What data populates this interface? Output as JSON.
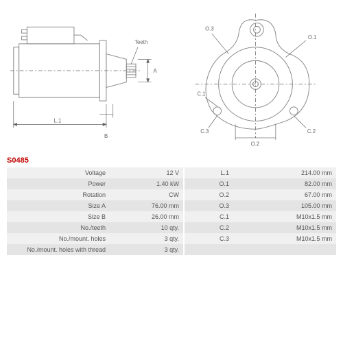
{
  "part_number": "S0485",
  "diagram_left": {
    "labels": {
      "L1": "L.1",
      "B": "B",
      "A": "A",
      "Teeth": "Teeth"
    },
    "stroke_color": "#888888",
    "dim_color": "#666666",
    "line_width": 1
  },
  "diagram_right": {
    "labels": {
      "O1": "O.1",
      "O2": "O.2",
      "O3": "O.3",
      "C1": "C.1",
      "C2": "C.2",
      "C3": "C.3"
    },
    "stroke_color": "#888888",
    "dim_color": "#666666",
    "line_width": 1
  },
  "specs": {
    "rows": [
      {
        "label1": "Voltage",
        "value1": "12 V",
        "label2": "L.1",
        "value2": "214.00 mm"
      },
      {
        "label1": "Power",
        "value1": "1.40 kW",
        "label2": "O.1",
        "value2": "82.00 mm"
      },
      {
        "label1": "Rotation",
        "value1": "CW",
        "label2": "O.2",
        "value2": "67.00 mm"
      },
      {
        "label1": "Size A",
        "value1": "76.00 mm",
        "label2": "O.3",
        "value2": "105.00 mm"
      },
      {
        "label1": "Size B",
        "value1": "26.00 mm",
        "label2": "C.1",
        "value2": "M10x1.5 mm"
      },
      {
        "label1": "No./teeth",
        "value1": "10 qty.",
        "label2": "C.2",
        "value2": "M10x1.5 mm"
      },
      {
        "label1": "No./mount. holes",
        "value1": "3 qty.",
        "label2": "C.3",
        "value2": "M10x1.5 mm"
      },
      {
        "label1": "No./mount. holes with thread",
        "value1": "3 qty.",
        "label2": "",
        "value2": ""
      }
    ],
    "row_bg_odd": "#f0f0f0",
    "row_bg_even": "#e4e4e4",
    "text_color": "#555555",
    "font_size": 9
  },
  "colors": {
    "part_number_color": "#c00000",
    "background": "#ffffff"
  }
}
